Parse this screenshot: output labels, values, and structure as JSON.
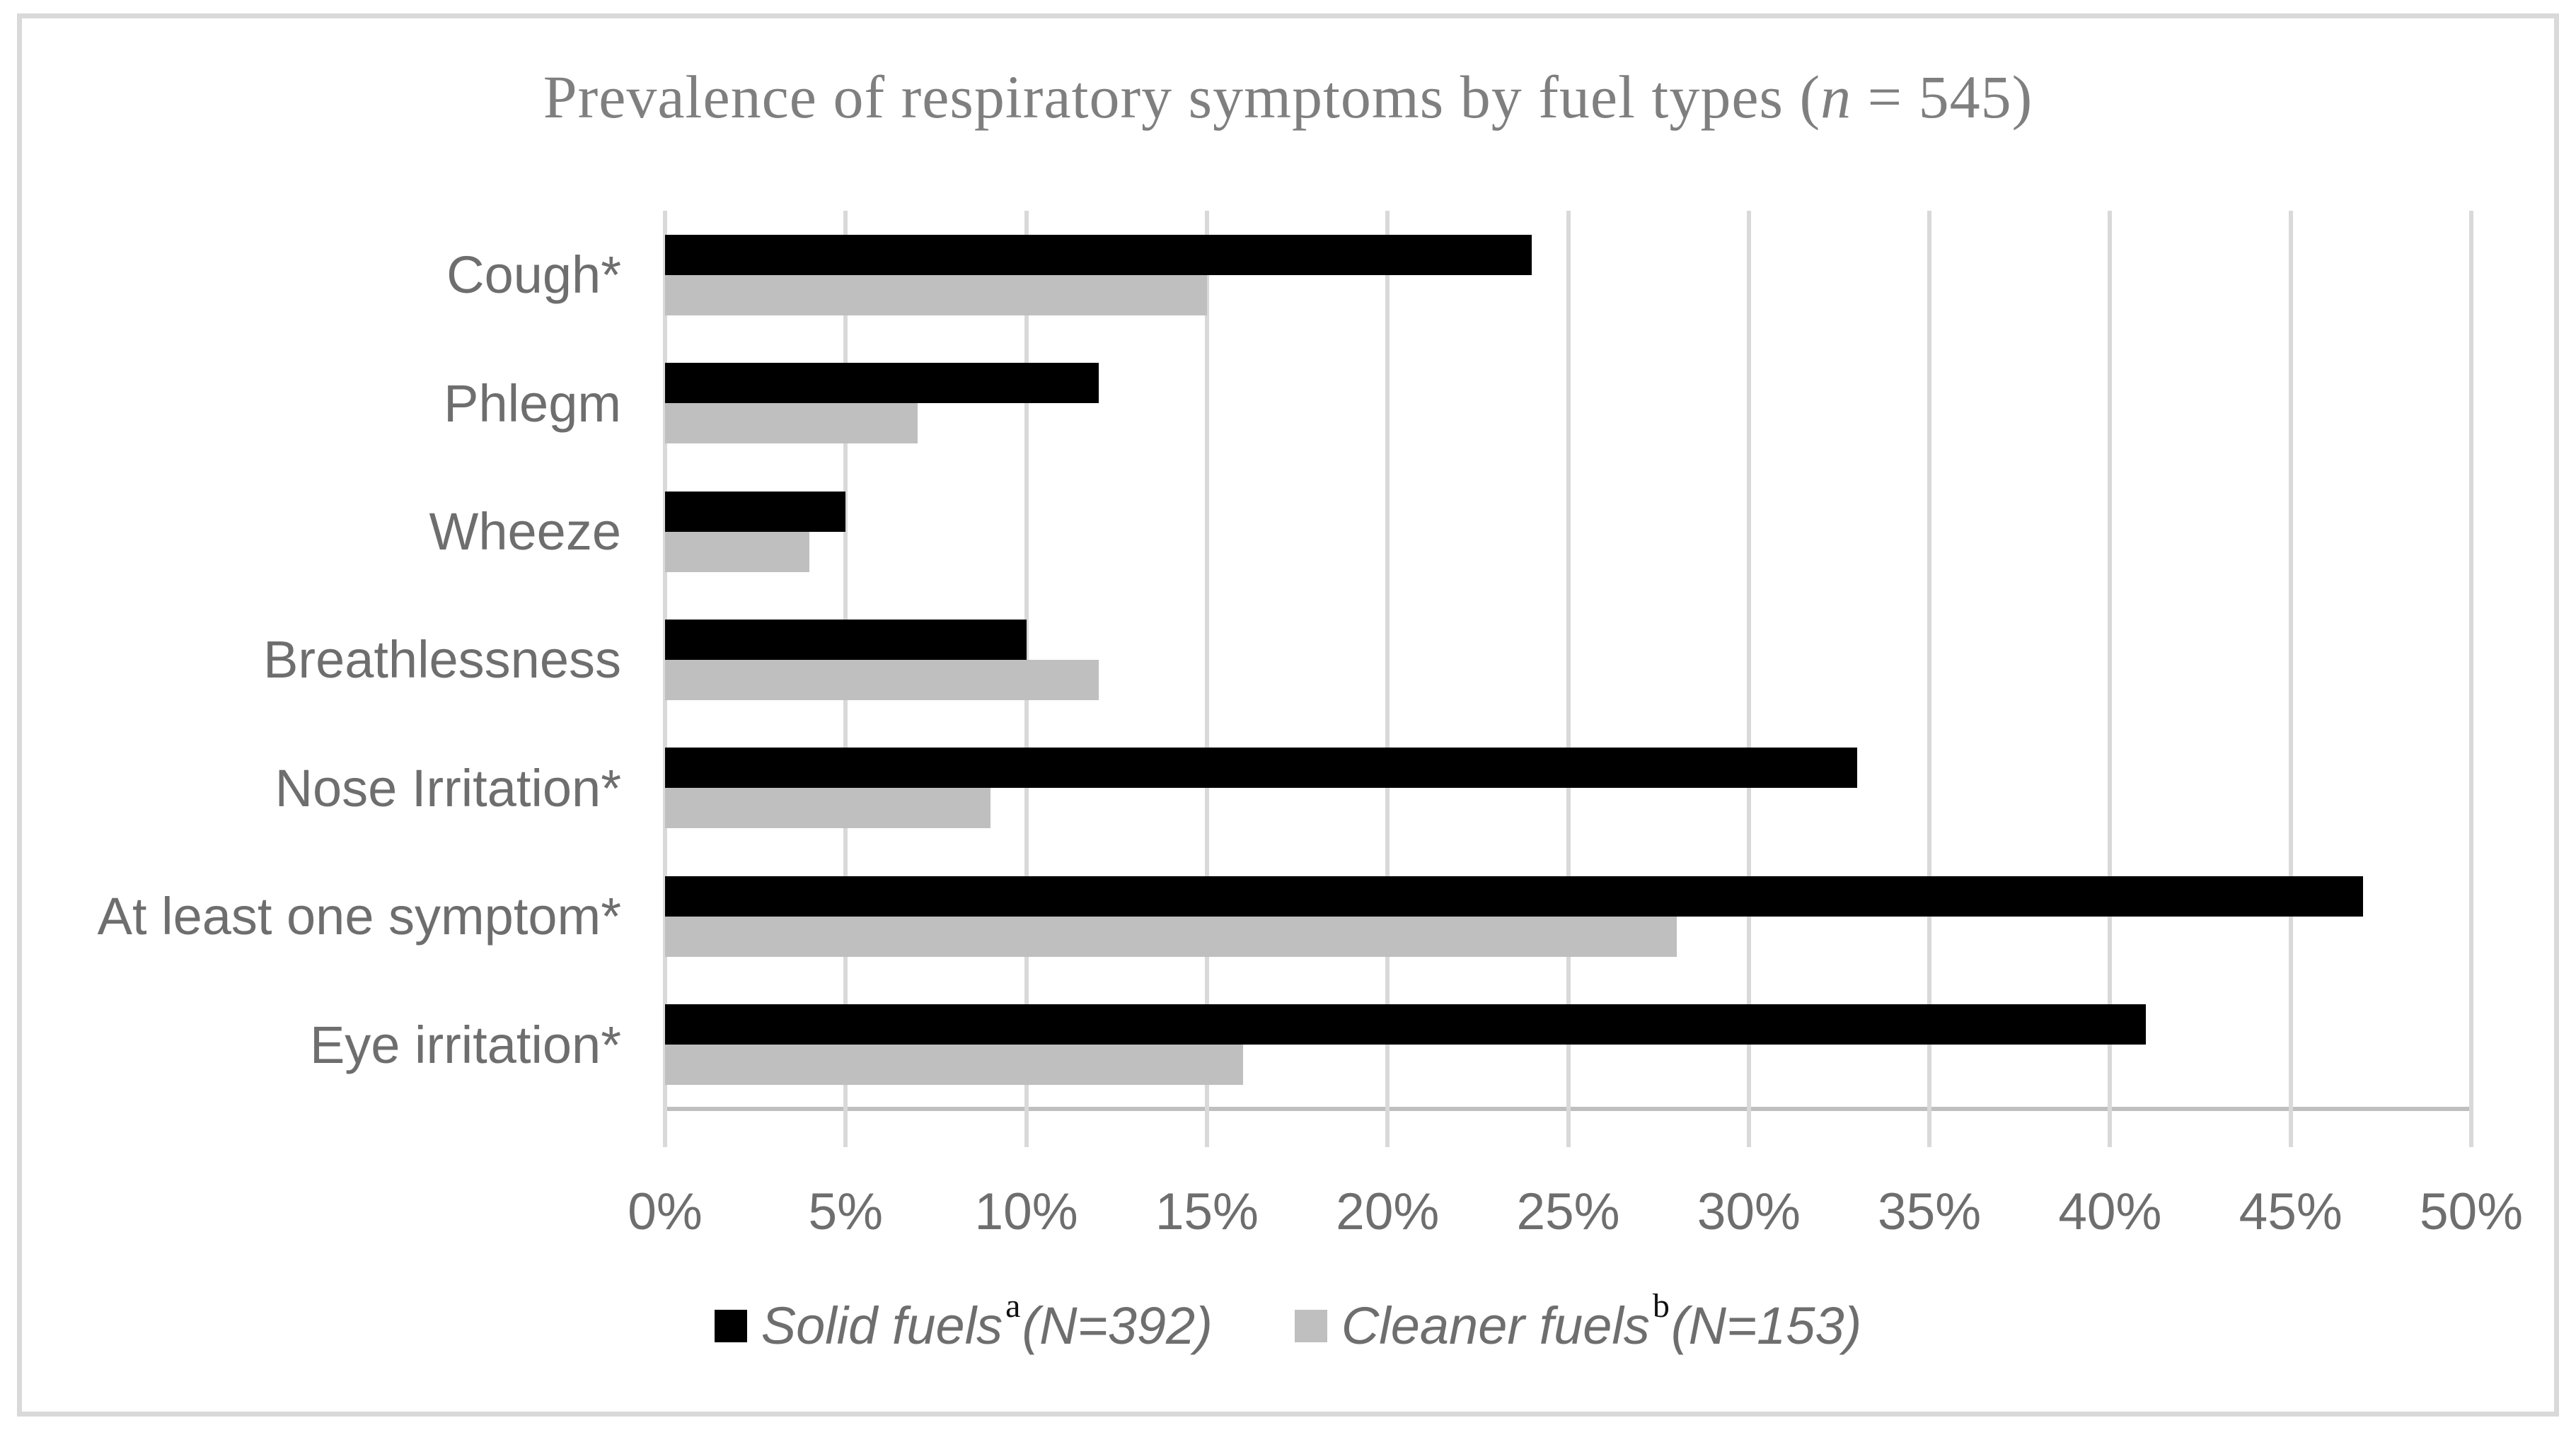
{
  "figure": {
    "background": "#ffffff",
    "border_color": "#d9d9d9",
    "title_full": "Prevalence of respiratory symptoms by fuel types (n = 545)",
    "title_parts": {
      "prefix": "Prevalence of respiratory symptoms by fuel types (",
      "italic": "n",
      "suffix": " = 545)"
    }
  },
  "chart_data": {
    "type": "bar",
    "orientation": "horizontal",
    "title": "Prevalence of respiratory symptoms by fuel types (n = 545)",
    "grid": true,
    "legend_position": "bottom",
    "categories": [
      "Cough*",
      "Phlegm",
      "Wheeze",
      "Breathlessness",
      "Nose Irritation*",
      "At least one symptom*",
      "Eye irritation*"
    ],
    "series": [
      {
        "name": "Solid fuels",
        "superscript": "a",
        "suffix": "(N=392)",
        "color": "#000000",
        "values": [
          24,
          12,
          5,
          10,
          33,
          47,
          41
        ]
      },
      {
        "name": "Cleaner fuels",
        "superscript": "b",
        "suffix": "(N=153)",
        "color": "#bfbfbf",
        "values": [
          15,
          7,
          4,
          12,
          9,
          28,
          16
        ]
      }
    ],
    "x_axis": {
      "unit": "%",
      "min": 0,
      "max": 50,
      "tick_step": 5,
      "tick_labels": [
        "0%",
        "5%",
        "10%",
        "15%",
        "20%",
        "25%",
        "30%",
        "35%",
        "40%",
        "45%",
        "50%"
      ]
    },
    "colors": {
      "gridline": "#d9d9d9",
      "axis_line": "#bfbfbf",
      "tick": "#d9d9d9",
      "label_text": "#6e6e6e",
      "title_text": "#7f7f7f",
      "superscript_text": "#111111"
    }
  }
}
